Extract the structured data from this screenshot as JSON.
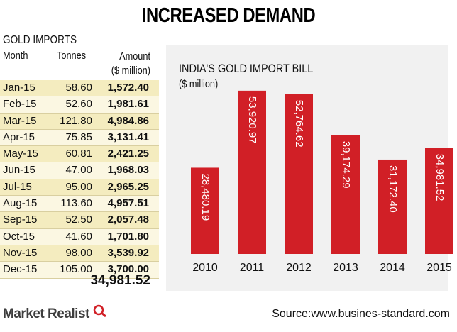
{
  "title": "INCREASED DEMAND",
  "imports_table": {
    "title": "GOLD IMPORTS",
    "headers": {
      "month": "Month",
      "tonnes": "Tonnes",
      "amount": "Amount",
      "amount_unit": "($ million)"
    },
    "rows": [
      {
        "month": "Jan-15",
        "tonnes": "58.60",
        "amount": "1,572.40"
      },
      {
        "month": "Feb-15",
        "tonnes": "52.60",
        "amount": "1,981.61"
      },
      {
        "month": "Mar-15",
        "tonnes": "121.80",
        "amount": "4,984.86"
      },
      {
        "month": "Apr-15",
        "tonnes": "75.85",
        "amount": "3,131.41"
      },
      {
        "month": "May-15",
        "tonnes": "60.81",
        "amount": "2,421.25"
      },
      {
        "month": "Jun-15",
        "tonnes": "47.00",
        "amount": "1,968.03"
      },
      {
        "month": "Jul-15",
        "tonnes": "95.00",
        "amount": "2,965.25"
      },
      {
        "month": "Aug-15",
        "tonnes": "113.60",
        "amount": "4,957.51"
      },
      {
        "month": "Sep-15",
        "tonnes": "52.50",
        "amount": "2,057.48"
      },
      {
        "month": "Oct-15",
        "tonnes": "41.60",
        "amount": "1,701.80"
      },
      {
        "month": "Nov-15",
        "tonnes": "98.00",
        "amount": "3,539.92"
      },
      {
        "month": "Dec-15",
        "tonnes": "105.00",
        "amount": "3,700.00"
      }
    ],
    "total": "34,981.52"
  },
  "chart_data": {
    "type": "bar",
    "title": "INDIA'S GOLD IMPORT BILL",
    "ylabel": "($ million)",
    "categories": [
      "2010",
      "2011",
      "2012",
      "2013",
      "2014",
      "2015"
    ],
    "values": [
      28480.19,
      53920.97,
      52764.62,
      39174.29,
      31172.4,
      34981.52
    ],
    "value_labels": [
      "28,480.19",
      "53,920.97",
      "52,764.62",
      "39,174.29",
      "31,172.40",
      "34,981.52"
    ],
    "ylim": [
      0,
      56000
    ],
    "bar_color": "#d11f26",
    "grid": false
  },
  "footer": {
    "brand": "Market Realist",
    "source": "Source:www.busines-standard.com"
  }
}
